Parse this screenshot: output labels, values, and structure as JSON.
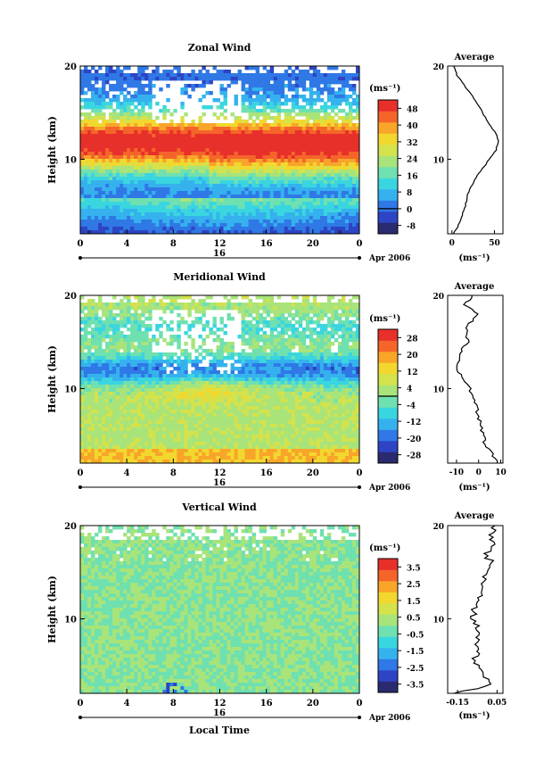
{
  "figure": {
    "xlabel": "Local Time",
    "date_label": "Apr 2006",
    "day_label": "16",
    "ylabel": "Height (km)",
    "average_title": "Average",
    "colorbar_unit": "(ms⁻¹)",
    "avg_unit": "(ms⁻¹)"
  },
  "colors": {
    "scale": [
      "#2a2a6e",
      "#2d44c4",
      "#2f78e6",
      "#35b2ee",
      "#3ad6e0",
      "#6fe0b0",
      "#a8e47a",
      "#d4e24c",
      "#f2d82e",
      "#f8a52a",
      "#f5652a",
      "#e8302a"
    ]
  },
  "chart_data": [
    {
      "type": "heatmap",
      "title": "Zonal Wind",
      "x_ticks": [
        "0",
        "4",
        "8",
        "12",
        "16",
        "20",
        "0"
      ],
      "x_range": [
        0,
        24
      ],
      "y_ticks": [
        "20",
        "10"
      ],
      "y_range": [
        2,
        20
      ],
      "colorbar_ticks": [
        "48",
        "40",
        "32",
        "24",
        "16",
        "8",
        "0",
        "-8"
      ],
      "colorbar_range": [
        -12,
        52
      ],
      "profile": [
        {
          "h": 2,
          "v": 2
        },
        {
          "h": 3,
          "v": 8
        },
        {
          "h": 4,
          "v": 12
        },
        {
          "h": 5,
          "v": 16
        },
        {
          "h": 6,
          "v": 18
        },
        {
          "h": 7,
          "v": 22
        },
        {
          "h": 8,
          "v": 28
        },
        {
          "h": 9,
          "v": 36
        },
        {
          "h": 10,
          "v": 44
        },
        {
          "h": 11,
          "v": 52
        },
        {
          "h": 12,
          "v": 55
        },
        {
          "h": 13,
          "v": 50
        },
        {
          "h": 14,
          "v": 42
        },
        {
          "h": 15,
          "v": 36
        },
        {
          "h": 16,
          "v": 30
        },
        {
          "h": 17,
          "v": 22
        },
        {
          "h": 18,
          "v": 14
        },
        {
          "h": 19,
          "v": 6
        },
        {
          "h": 20,
          "v": 2
        }
      ],
      "profile_ticks": [
        "0",
        "50"
      ],
      "profile_range": [
        -5,
        60
      ],
      "profile_y_ticks": [
        "20",
        "10"
      ]
    },
    {
      "type": "heatmap",
      "title": "Meridional Wind",
      "x_ticks": [
        "0",
        "4",
        "8",
        "12",
        "16",
        "20",
        "0"
      ],
      "x_range": [
        0,
        24
      ],
      "y_ticks": [
        "20",
        "10"
      ],
      "y_range": [
        2,
        20
      ],
      "colorbar_ticks": [
        "28",
        "20",
        "12",
        "4",
        "-4",
        "-12",
        "-20",
        "-28"
      ],
      "colorbar_range": [
        -32,
        32
      ],
      "profile": [
        {
          "h": 2,
          "v": 9
        },
        {
          "h": 3,
          "v": 6
        },
        {
          "h": 4,
          "v": 3
        },
        {
          "h": 5,
          "v": 2
        },
        {
          "h": 6,
          "v": 1
        },
        {
          "h": 7,
          "v": 0
        },
        {
          "h": 8,
          "v": -1
        },
        {
          "h": 9,
          "v": -2
        },
        {
          "h": 10,
          "v": -4
        },
        {
          "h": 11,
          "v": -7
        },
        {
          "h": 12,
          "v": -10
        },
        {
          "h": 13,
          "v": -9
        },
        {
          "h": 14,
          "v": -8
        },
        {
          "h": 15,
          "v": -5
        },
        {
          "h": 16,
          "v": -6
        },
        {
          "h": 17,
          "v": -4
        },
        {
          "h": 18,
          "v": -1
        },
        {
          "h": 19,
          "v": -6
        },
        {
          "h": 20,
          "v": -3
        }
      ],
      "profile_ticks": [
        "-10",
        "0",
        "10"
      ],
      "profile_range": [
        -14,
        11
      ],
      "profile_y_ticks": [
        "20",
        "10"
      ]
    },
    {
      "type": "heatmap",
      "title": "Vertical Wind",
      "x_ticks": [
        "0",
        "4",
        "8",
        "12",
        "16",
        "20",
        "0"
      ],
      "x_range": [
        0,
        24
      ],
      "y_ticks": [
        "20",
        "10"
      ],
      "y_range": [
        2,
        20
      ],
      "colorbar_ticks": [
        "3.5",
        "2.5",
        "1.5",
        "0.5",
        "-0.5",
        "-1.5",
        "-2.5",
        "-3.5"
      ],
      "colorbar_range": [
        -4,
        4
      ],
      "profile": [
        {
          "h": 2,
          "v": -0.15
        },
        {
          "h": 3,
          "v": 0.02
        },
        {
          "h": 4,
          "v": -0.02
        },
        {
          "h": 5,
          "v": -0.05
        },
        {
          "h": 6,
          "v": -0.06
        },
        {
          "h": 7,
          "v": -0.04
        },
        {
          "h": 8,
          "v": -0.06
        },
        {
          "h": 9,
          "v": -0.05
        },
        {
          "h": 10,
          "v": -0.07
        },
        {
          "h": 11,
          "v": -0.06
        },
        {
          "h": 12,
          "v": -0.04
        },
        {
          "h": 13,
          "v": -0.02
        },
        {
          "h": 14,
          "v": -0.01
        },
        {
          "h": 15,
          "v": 0.0
        },
        {
          "h": 16,
          "v": 0.02
        },
        {
          "h": 17,
          "v": -0.01
        },
        {
          "h": 18,
          "v": 0.03
        },
        {
          "h": 19,
          "v": 0.01
        },
        {
          "h": 20,
          "v": 0.04
        }
      ],
      "profile_ticks": [
        "-0.15",
        "0.05"
      ],
      "profile_range": [
        -0.2,
        0.08
      ],
      "profile_y_ticks": [
        "20",
        "10"
      ]
    }
  ]
}
